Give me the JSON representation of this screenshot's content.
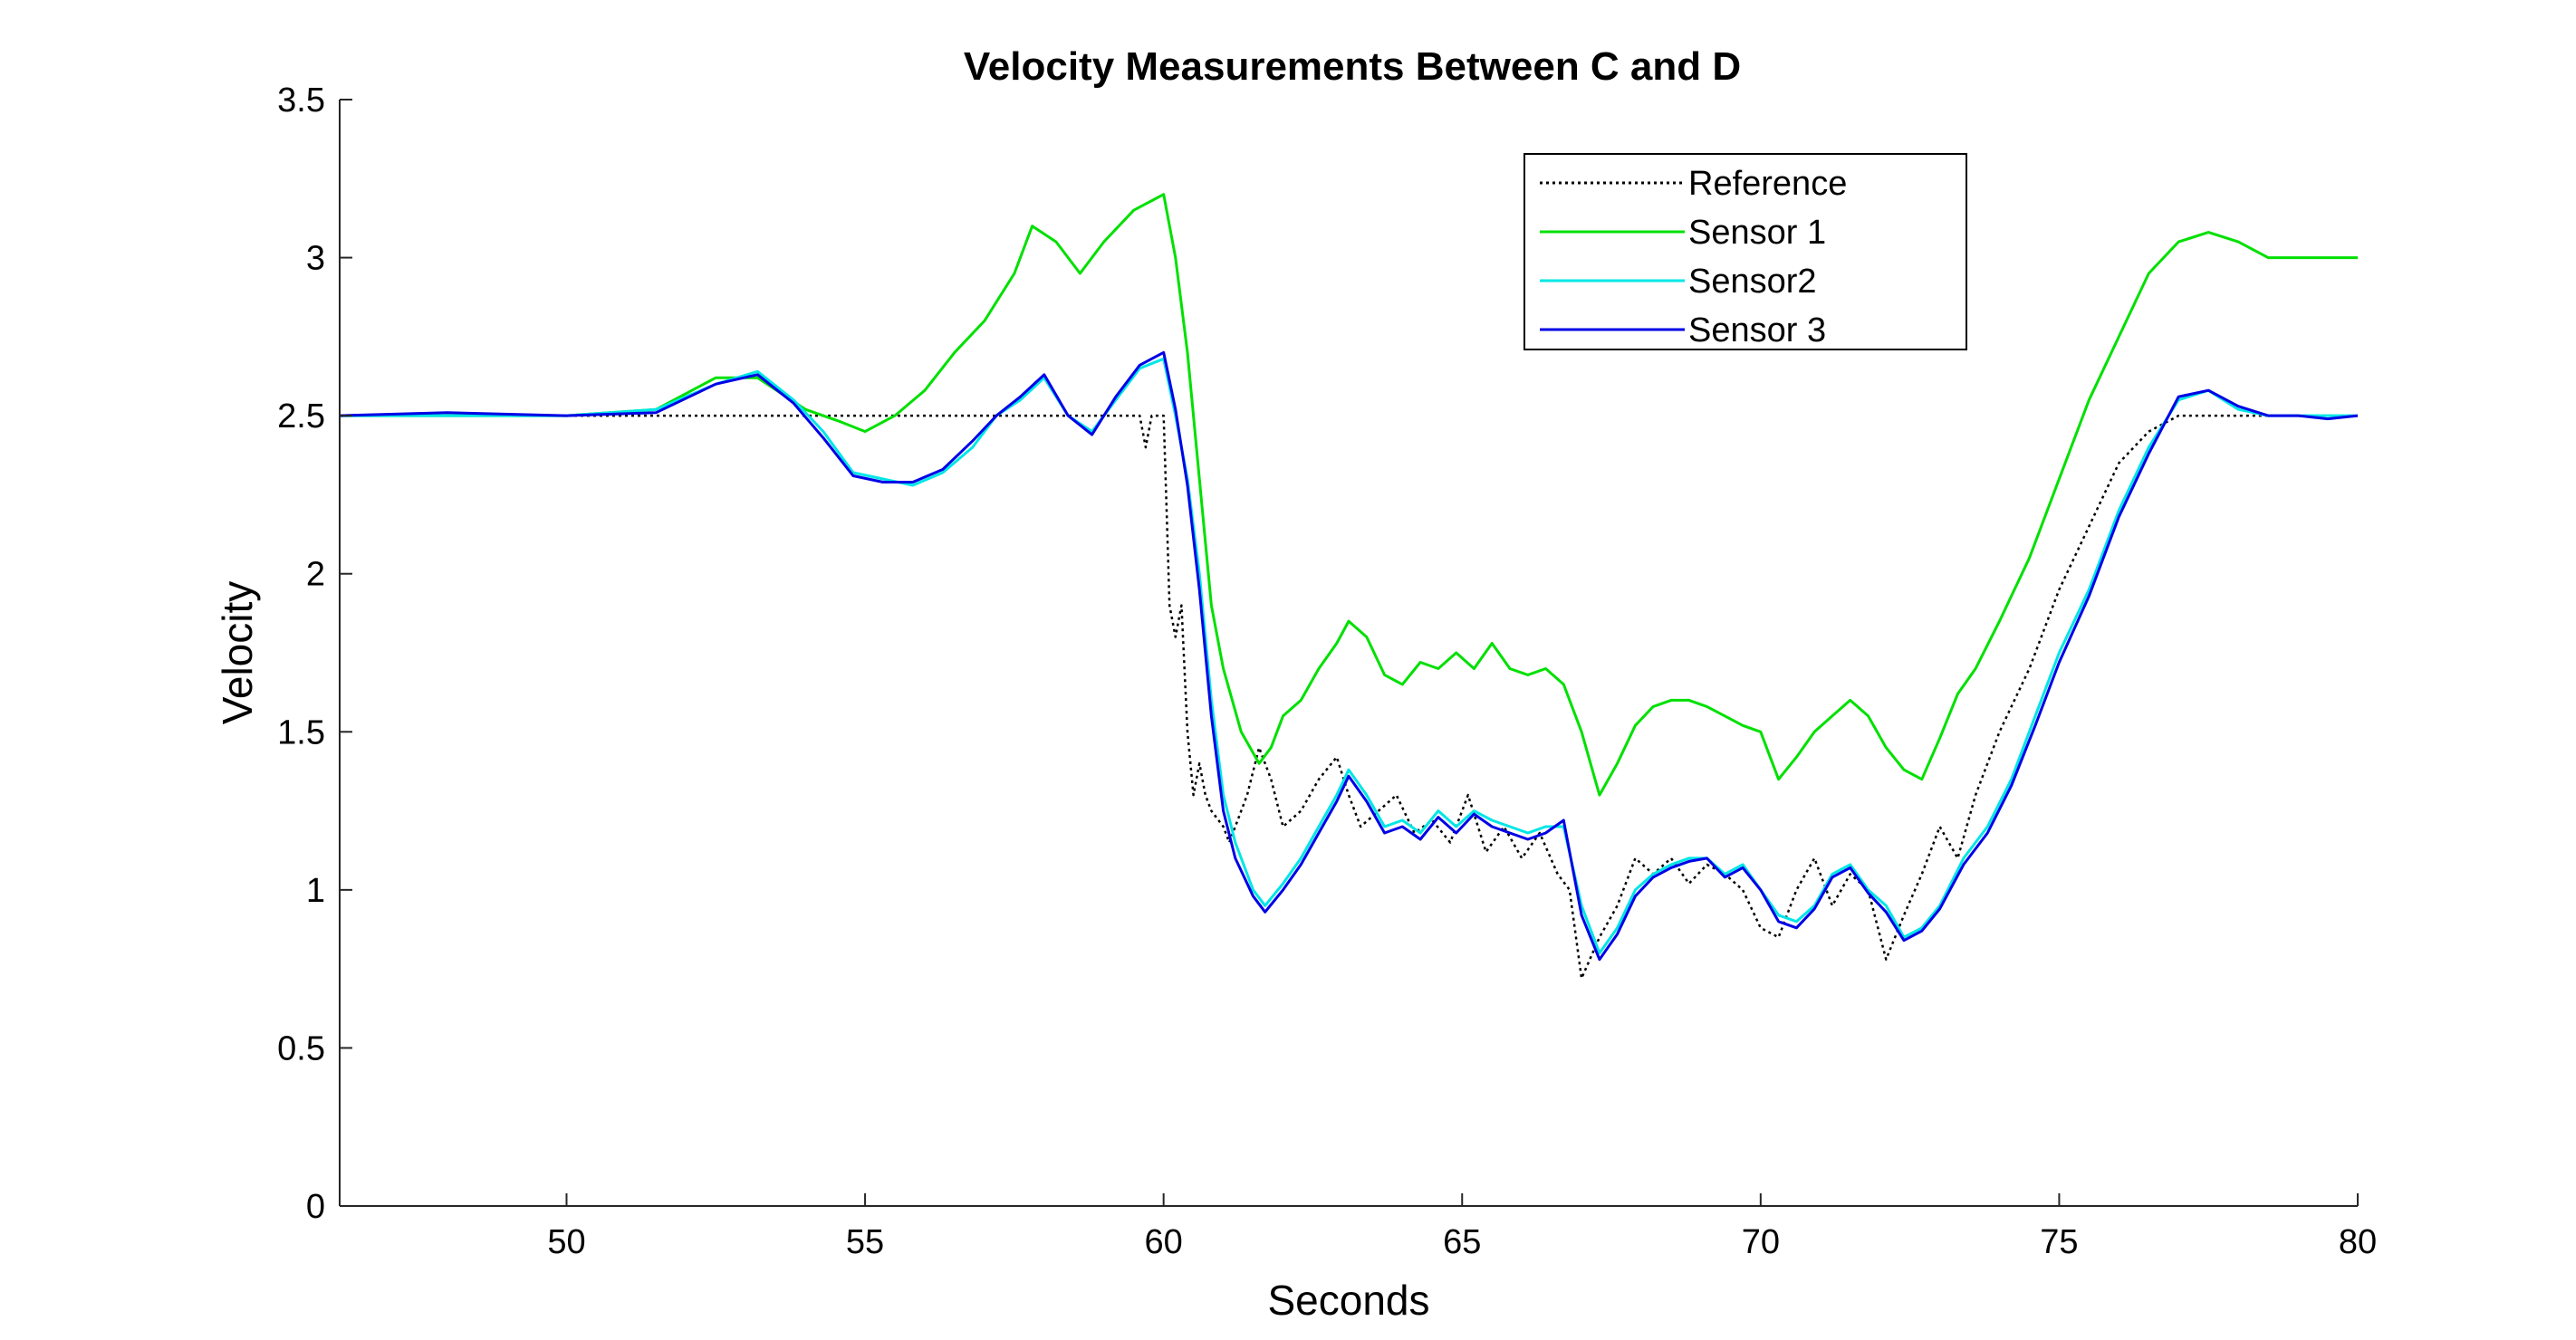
{
  "chart_data": {
    "type": "line",
    "title": "Velocity Measurements Between C and D",
    "xlabel": "Seconds",
    "ylabel": "Velocity",
    "xlim": [
      46.2,
      80
    ],
    "ylim": [
      0,
      3.5
    ],
    "xticks": [
      50,
      55,
      60,
      65,
      70,
      75,
      80
    ],
    "yticks": [
      0,
      0.5,
      1,
      1.5,
      2,
      2.5,
      3,
      3.5
    ],
    "xtick_labels": [
      "50",
      "55",
      "60",
      "65",
      "70",
      "75",
      "80"
    ],
    "ytick_labels": [
      "0",
      "0.5",
      "1",
      "1.5",
      "2",
      "2.5",
      "3",
      "3.5"
    ],
    "grid": false,
    "legend_position": "top-right",
    "series": [
      {
        "name": "Reference",
        "color": "#000000",
        "dash": "dotted",
        "x": [
          46.2,
          59.6,
          59.7,
          59.8,
          60.0,
          60.05,
          60.1,
          60.2,
          60.3,
          60.4,
          60.5,
          60.6,
          60.7,
          60.8,
          61.0,
          61.1,
          61.2,
          61.4,
          61.6,
          61.8,
          62.0,
          62.3,
          62.6,
          62.9,
          63.1,
          63.3,
          63.6,
          63.9,
          64.2,
          64.5,
          64.8,
          65.1,
          65.4,
          65.7,
          66.0,
          66.3,
          66.6,
          66.8,
          67.0,
          67.3,
          67.6,
          67.9,
          68.2,
          68.5,
          68.8,
          69.1,
          69.4,
          69.7,
          70.0,
          70.3,
          70.6,
          70.9,
          71.2,
          71.5,
          71.8,
          72.1,
          72.4,
          72.7,
          73.0,
          73.3,
          73.6,
          74.0,
          74.5,
          75.0,
          75.5,
          76.0,
          76.5,
          77.0,
          80.0
        ],
        "y": [
          2.5,
          2.5,
          2.4,
          2.5,
          2.5,
          2.2,
          1.9,
          1.8,
          1.9,
          1.5,
          1.3,
          1.4,
          1.3,
          1.25,
          1.2,
          1.15,
          1.2,
          1.3,
          1.45,
          1.35,
          1.2,
          1.25,
          1.35,
          1.42,
          1.3,
          1.2,
          1.25,
          1.3,
          1.18,
          1.22,
          1.15,
          1.3,
          1.12,
          1.2,
          1.1,
          1.18,
          1.05,
          1.0,
          0.72,
          0.85,
          0.95,
          1.1,
          1.05,
          1.1,
          1.02,
          1.08,
          1.05,
          1.0,
          0.88,
          0.85,
          1.0,
          1.1,
          0.95,
          1.05,
          1.0,
          0.78,
          0.92,
          1.05,
          1.2,
          1.1,
          1.3,
          1.5,
          1.7,
          1.95,
          2.15,
          2.35,
          2.45,
          2.5,
          2.5
        ]
      },
      {
        "name": "Sensor 1",
        "color": "#00e000",
        "dash": "solid",
        "x": [
          46.2,
          48.0,
          50.0,
          51.5,
          52.5,
          53.2,
          54.0,
          54.6,
          55.0,
          55.5,
          56.0,
          56.5,
          57.0,
          57.5,
          57.8,
          58.2,
          58.6,
          59.0,
          59.5,
          60.0,
          60.2,
          60.4,
          60.6,
          60.8,
          61.0,
          61.3,
          61.6,
          61.8,
          62.0,
          62.3,
          62.6,
          62.9,
          63.1,
          63.4,
          63.7,
          64.0,
          64.3,
          64.6,
          64.9,
          65.2,
          65.5,
          65.8,
          66.1,
          66.4,
          66.7,
          67.0,
          67.3,
          67.6,
          67.9,
          68.2,
          68.5,
          68.8,
          69.1,
          69.4,
          69.7,
          70.0,
          70.3,
          70.6,
          70.9,
          71.2,
          71.5,
          71.8,
          72.1,
          72.4,
          72.7,
          73.0,
          73.3,
          73.6,
          74.0,
          74.5,
          75.0,
          75.5,
          76.0,
          76.5,
          77.0,
          77.5,
          78.0,
          78.5,
          79.0,
          79.5,
          80.0
        ],
        "y": [
          2.5,
          2.5,
          2.5,
          2.52,
          2.62,
          2.62,
          2.52,
          2.48,
          2.45,
          2.5,
          2.58,
          2.7,
          2.8,
          2.95,
          3.1,
          3.05,
          2.95,
          3.05,
          3.15,
          3.2,
          3.0,
          2.7,
          2.3,
          1.9,
          1.7,
          1.5,
          1.4,
          1.45,
          1.55,
          1.6,
          1.7,
          1.78,
          1.85,
          1.8,
          1.68,
          1.65,
          1.72,
          1.7,
          1.75,
          1.7,
          1.78,
          1.7,
          1.68,
          1.7,
          1.65,
          1.5,
          1.3,
          1.4,
          1.52,
          1.58,
          1.6,
          1.6,
          1.58,
          1.55,
          1.52,
          1.5,
          1.35,
          1.42,
          1.5,
          1.55,
          1.6,
          1.55,
          1.45,
          1.38,
          1.35,
          1.48,
          1.62,
          1.7,
          1.85,
          2.05,
          2.3,
          2.55,
          2.75,
          2.95,
          3.05,
          3.08,
          3.05,
          3.0,
          3.0,
          3.0,
          3.0
        ]
      },
      {
        "name": "Sensor2",
        "color": "#00e6e6",
        "dash": "solid",
        "x": [
          46.2,
          48.0,
          50.0,
          51.5,
          52.5,
          53.2,
          53.8,
          54.3,
          54.8,
          55.3,
          55.8,
          56.3,
          56.8,
          57.2,
          57.6,
          58.0,
          58.4,
          58.8,
          59.2,
          59.6,
          60.0,
          60.2,
          60.4,
          60.6,
          60.8,
          61.0,
          61.2,
          61.5,
          61.7,
          62.0,
          62.3,
          62.6,
          62.9,
          63.1,
          63.4,
          63.7,
          64.0,
          64.3,
          64.6,
          64.9,
          65.2,
          65.5,
          65.8,
          66.1,
          66.4,
          66.7,
          67.0,
          67.3,
          67.6,
          67.9,
          68.2,
          68.5,
          68.8,
          69.1,
          69.4,
          69.7,
          70.0,
          70.3,
          70.6,
          70.9,
          71.2,
          71.5,
          71.8,
          72.1,
          72.4,
          72.7,
          73.0,
          73.4,
          73.8,
          74.2,
          74.6,
          75.0,
          75.5,
          76.0,
          76.5,
          77.0,
          77.5,
          78.0,
          78.5,
          79.0,
          79.5,
          80.0
        ],
        "y": [
          2.5,
          2.5,
          2.5,
          2.52,
          2.6,
          2.64,
          2.55,
          2.45,
          2.32,
          2.3,
          2.28,
          2.32,
          2.4,
          2.5,
          2.55,
          2.62,
          2.5,
          2.45,
          2.55,
          2.65,
          2.68,
          2.5,
          2.3,
          2.0,
          1.6,
          1.3,
          1.15,
          1.0,
          0.95,
          1.02,
          1.1,
          1.2,
          1.3,
          1.38,
          1.3,
          1.2,
          1.22,
          1.18,
          1.25,
          1.2,
          1.25,
          1.22,
          1.2,
          1.18,
          1.2,
          1.2,
          0.95,
          0.8,
          0.88,
          1.0,
          1.05,
          1.08,
          1.1,
          1.1,
          1.05,
          1.08,
          1.0,
          0.92,
          0.9,
          0.95,
          1.05,
          1.08,
          1.0,
          0.95,
          0.85,
          0.88,
          0.95,
          1.1,
          1.2,
          1.35,
          1.55,
          1.75,
          1.95,
          2.2,
          2.4,
          2.55,
          2.58,
          2.52,
          2.5,
          2.5,
          2.5,
          2.5
        ]
      },
      {
        "name": "Sensor 3",
        "color": "#0000e6",
        "dash": "solid",
        "x": [
          46.2,
          48.0,
          50.0,
          51.5,
          52.5,
          53.2,
          53.8,
          54.3,
          54.8,
          55.3,
          55.8,
          56.3,
          56.8,
          57.2,
          57.6,
          58.0,
          58.4,
          58.8,
          59.2,
          59.6,
          60.0,
          60.2,
          60.4,
          60.6,
          60.8,
          61.0,
          61.2,
          61.5,
          61.7,
          62.0,
          62.3,
          62.6,
          62.9,
          63.1,
          63.4,
          63.7,
          64.0,
          64.3,
          64.6,
          64.9,
          65.2,
          65.5,
          65.8,
          66.1,
          66.4,
          66.7,
          67.0,
          67.3,
          67.6,
          67.9,
          68.2,
          68.5,
          68.8,
          69.1,
          69.4,
          69.7,
          70.0,
          70.3,
          70.6,
          70.9,
          71.2,
          71.5,
          71.8,
          72.1,
          72.4,
          72.7,
          73.0,
          73.4,
          73.8,
          74.2,
          74.6,
          75.0,
          75.5,
          76.0,
          76.5,
          77.0,
          77.5,
          78.0,
          78.5,
          79.0,
          79.5,
          80.0
        ],
        "y": [
          2.5,
          2.51,
          2.5,
          2.51,
          2.6,
          2.63,
          2.54,
          2.43,
          2.31,
          2.29,
          2.29,
          2.33,
          2.42,
          2.5,
          2.56,
          2.63,
          2.5,
          2.44,
          2.56,
          2.66,
          2.7,
          2.52,
          2.28,
          1.95,
          1.55,
          1.25,
          1.1,
          0.98,
          0.93,
          1.0,
          1.08,
          1.18,
          1.28,
          1.36,
          1.28,
          1.18,
          1.2,
          1.16,
          1.23,
          1.18,
          1.24,
          1.2,
          1.18,
          1.16,
          1.18,
          1.22,
          0.92,
          0.78,
          0.86,
          0.98,
          1.04,
          1.07,
          1.09,
          1.1,
          1.04,
          1.07,
          1.0,
          0.9,
          0.88,
          0.94,
          1.04,
          1.07,
          0.99,
          0.93,
          0.84,
          0.87,
          0.94,
          1.08,
          1.18,
          1.33,
          1.52,
          1.72,
          1.93,
          2.18,
          2.38,
          2.56,
          2.58,
          2.53,
          2.5,
          2.5,
          2.49,
          2.5
        ]
      }
    ]
  }
}
